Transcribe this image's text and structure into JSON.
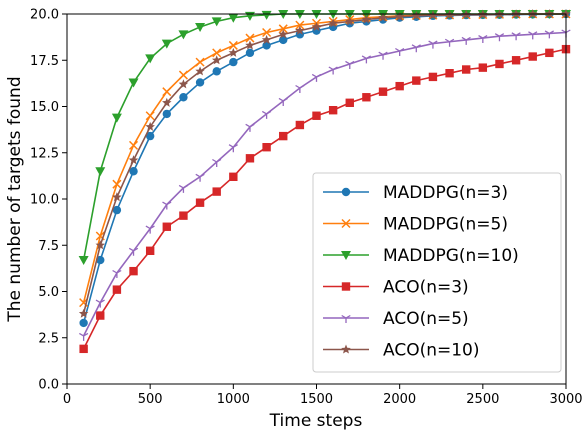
{
  "chart_data": {
    "type": "line",
    "title": "",
    "xlabel": "Time steps",
    "ylabel": "The number of targets found",
    "xlim": [
      0,
      3000
    ],
    "ylim": [
      0,
      20
    ],
    "xticks": [
      "0",
      "500",
      "1000",
      "1500",
      "2000",
      "2500",
      "3000"
    ],
    "yticks": [
      "0.0",
      "2.5",
      "5.0",
      "7.5",
      "10.0",
      "12.5",
      "15.0",
      "17.5",
      "20.0"
    ],
    "grid": false,
    "legend_position": "lower-right",
    "x": [
      100,
      200,
      300,
      400,
      500,
      600,
      700,
      800,
      900,
      1000,
      1100,
      1200,
      1300,
      1400,
      1500,
      1600,
      1700,
      1800,
      1900,
      2000,
      2100,
      2200,
      2300,
      2400,
      2500,
      2600,
      2700,
      2800,
      2900,
      3000
    ],
    "series": [
      {
        "name": "MADDPG(n=3)",
        "color": "#1f77b4",
        "marker": "circle",
        "values": [
          3.3,
          6.7,
          9.4,
          11.5,
          13.4,
          14.6,
          15.5,
          16.3,
          16.9,
          17.4,
          17.9,
          18.3,
          18.6,
          18.9,
          19.1,
          19.3,
          19.5,
          19.6,
          19.7,
          19.8,
          19.85,
          19.9,
          19.92,
          19.94,
          19.95,
          19.96,
          19.97,
          19.98,
          19.99,
          20.0
        ]
      },
      {
        "name": "MADDPG(n=5)",
        "color": "#ff7f0e",
        "marker": "x",
        "values": [
          4.4,
          8.0,
          10.8,
          12.9,
          14.5,
          15.8,
          16.7,
          17.4,
          17.9,
          18.3,
          18.7,
          19.0,
          19.2,
          19.4,
          19.5,
          19.6,
          19.7,
          19.8,
          19.85,
          19.9,
          19.92,
          19.94,
          19.95,
          19.96,
          19.97,
          19.98,
          19.99,
          20.0,
          20.0,
          20.0
        ]
      },
      {
        "name": "MADDPG(n=10)",
        "color": "#2ca02c",
        "marker": "triangle-down",
        "values": [
          6.7,
          11.5,
          14.4,
          16.3,
          17.6,
          18.4,
          18.9,
          19.3,
          19.6,
          19.8,
          19.9,
          19.95,
          20.0,
          20.0,
          20.0,
          20.0,
          20.0,
          20.0,
          20.0,
          20.0,
          20.0,
          20.0,
          20.0,
          20.0,
          20.0,
          20.0,
          20.0,
          20.0,
          20.0,
          20.0
        ]
      },
      {
        "name": "ACO(n=3)",
        "color": "#d62728",
        "marker": "square",
        "values": [
          1.9,
          3.7,
          5.1,
          6.1,
          7.2,
          8.5,
          9.1,
          9.8,
          10.4,
          11.2,
          12.2,
          12.8,
          13.4,
          14.0,
          14.5,
          14.8,
          15.2,
          15.5,
          15.8,
          16.1,
          16.4,
          16.6,
          16.8,
          17.0,
          17.1,
          17.3,
          17.5,
          17.7,
          17.9,
          18.1
        ]
      },
      {
        "name": "ACO(n=5)",
        "color": "#9467bd",
        "marker": "tri-down",
        "values": [
          2.6,
          4.4,
          6.0,
          7.2,
          8.4,
          9.7,
          10.6,
          11.2,
          12.0,
          12.8,
          13.9,
          14.6,
          15.3,
          16.0,
          16.6,
          17.0,
          17.3,
          17.6,
          17.8,
          18.0,
          18.2,
          18.4,
          18.5,
          18.6,
          18.7,
          18.8,
          18.85,
          18.9,
          18.95,
          19.0
        ]
      },
      {
        "name": "ACO(n=10)",
        "color": "#8c564b",
        "marker": "star",
        "values": [
          3.8,
          7.5,
          10.1,
          12.1,
          13.9,
          15.2,
          16.2,
          16.9,
          17.5,
          17.9,
          18.3,
          18.6,
          18.9,
          19.1,
          19.3,
          19.5,
          19.6,
          19.7,
          19.8,
          19.85,
          19.9,
          19.93,
          19.95,
          19.96,
          19.97,
          19.98,
          19.99,
          20.0,
          20.0,
          20.0
        ]
      }
    ]
  }
}
